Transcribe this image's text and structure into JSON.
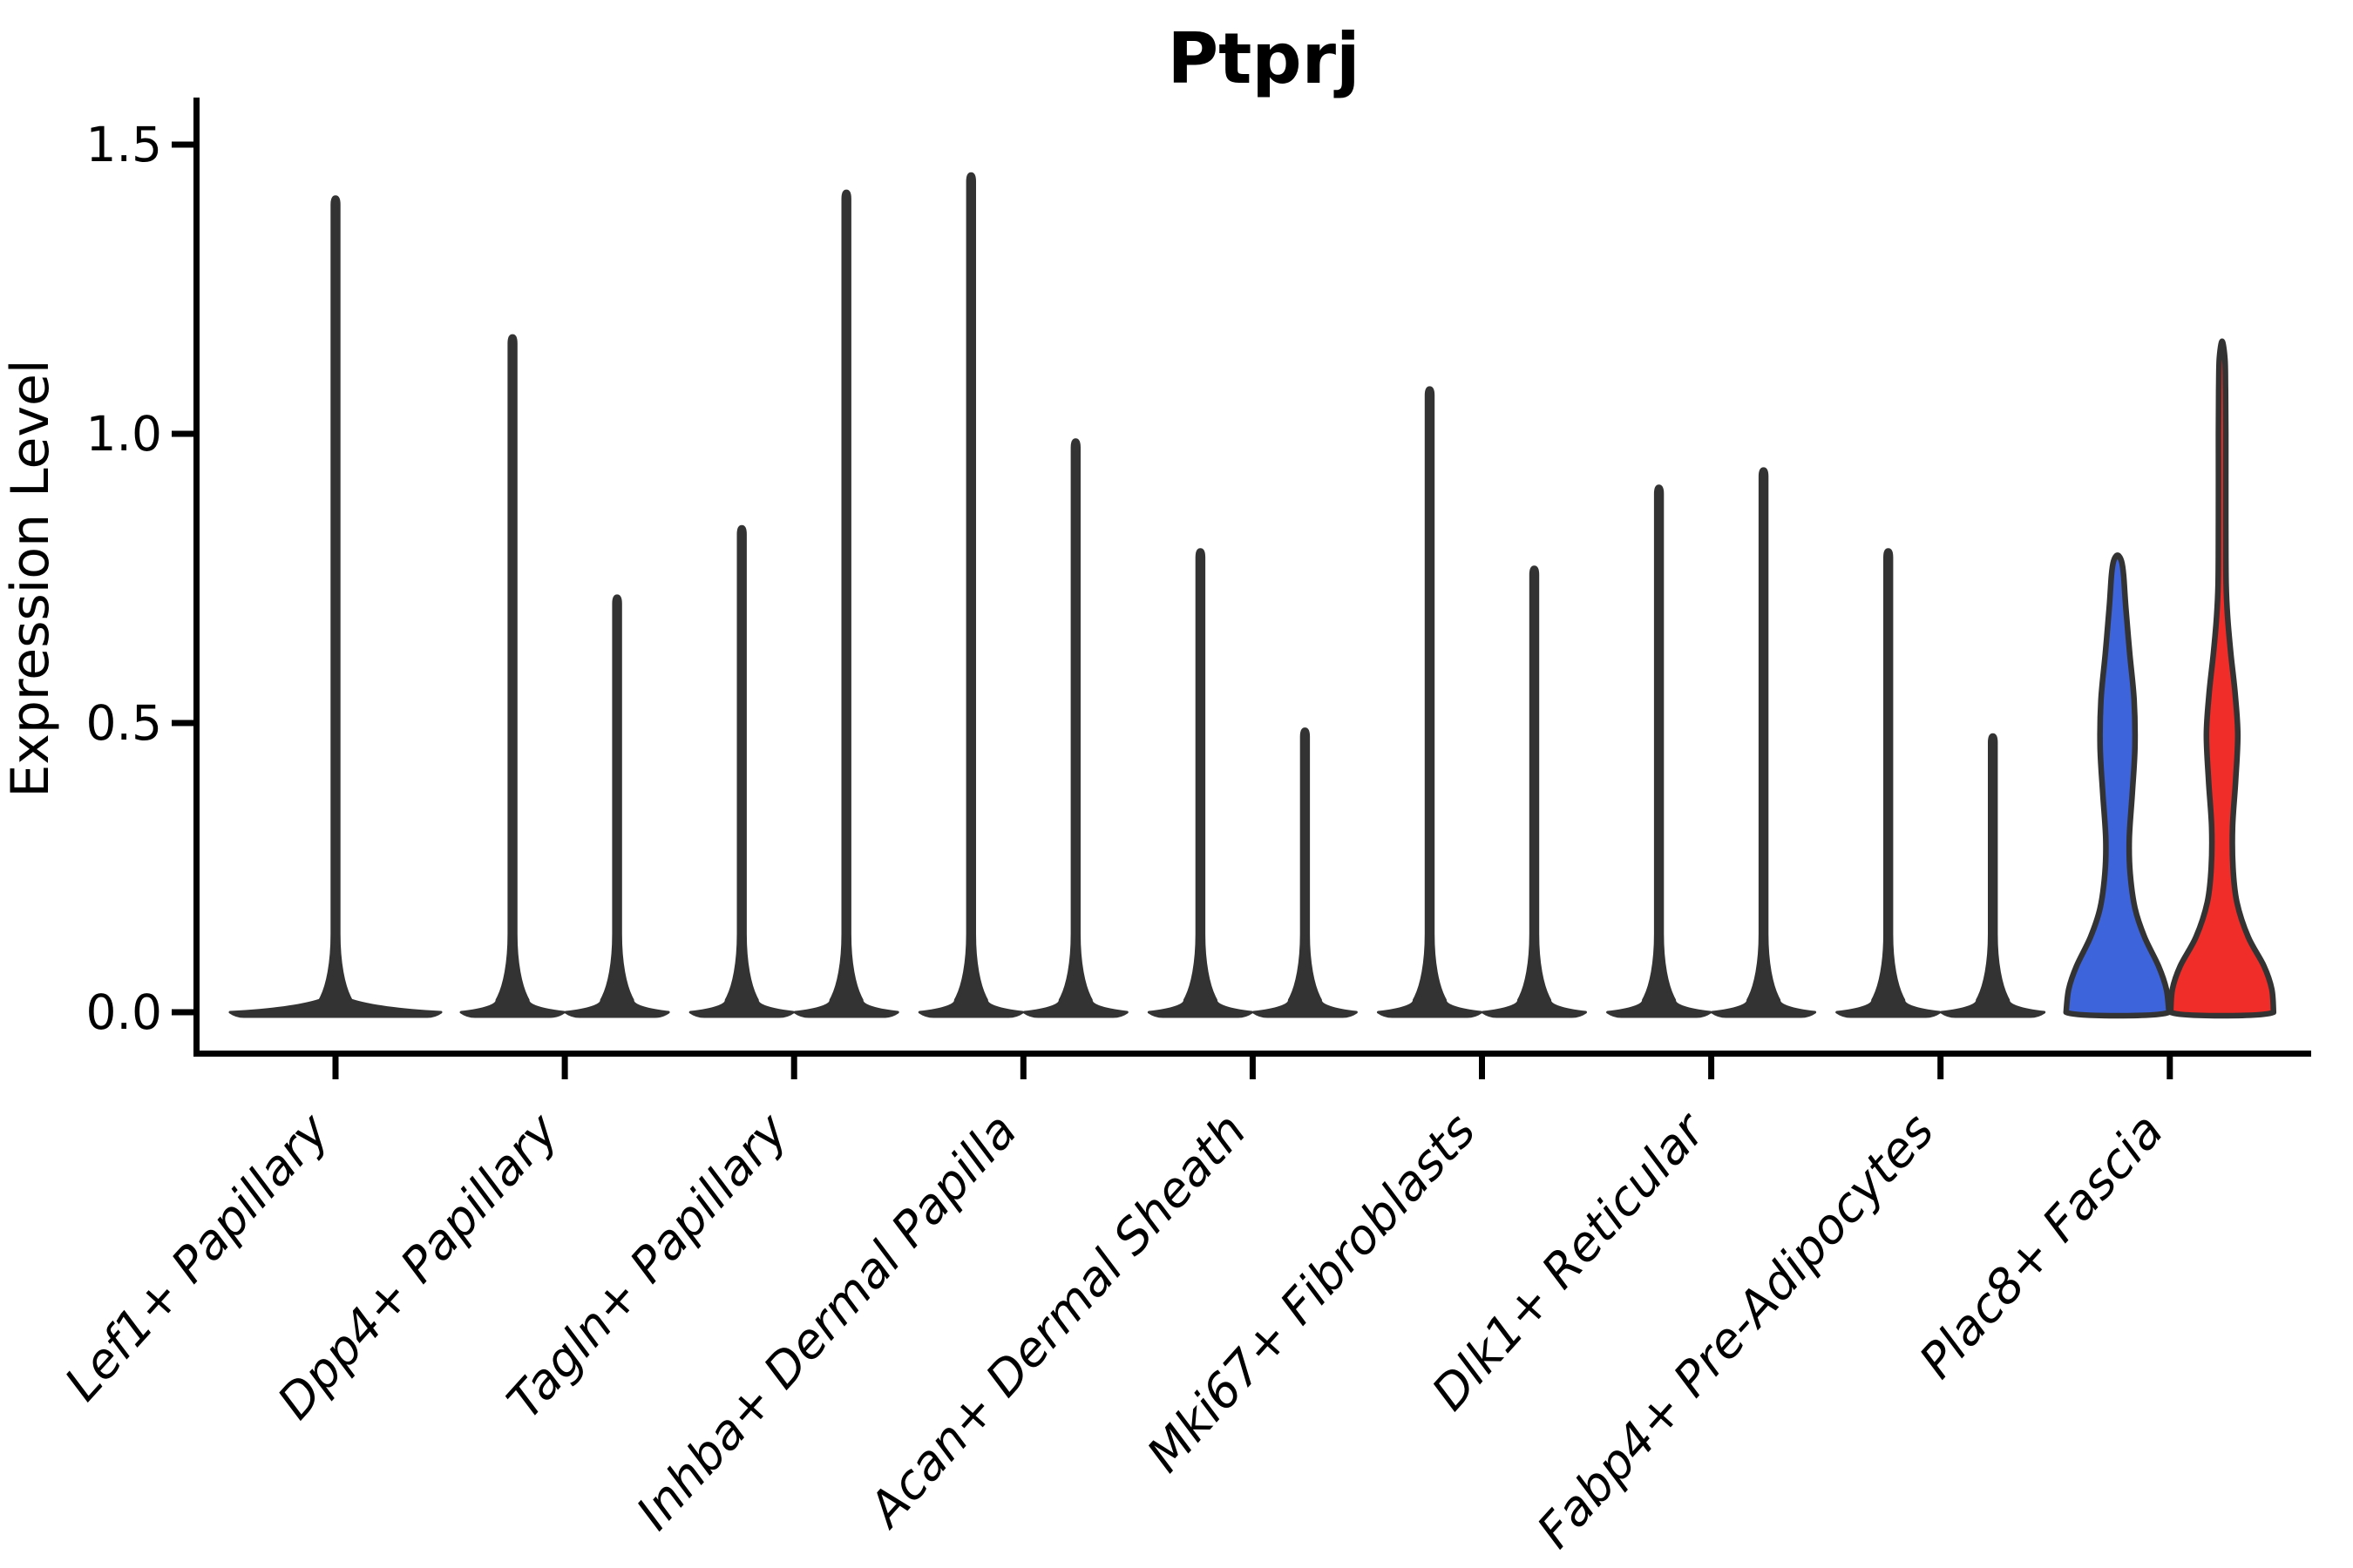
{
  "figure": {
    "title": "Ptprj",
    "background": "#ffffff",
    "axis_color": "#000000",
    "violin_outline_color": "#333333"
  },
  "chart_data": {
    "type": "violin",
    "title": "Ptprj",
    "xlabel": "",
    "ylabel": "Expression Level",
    "ylim": [
      -0.07,
      1.57
    ],
    "yticks": [
      0.0,
      0.5,
      1.0,
      1.5
    ],
    "ytick_labels": [
      "0.0",
      "0.5",
      "1.0",
      "1.5"
    ],
    "grid": false,
    "legend": "none",
    "description": "Split violin plot; every violin is zero-inflated (dense flat mass at 0 with a thin spike to its maximum). Only the last category is colored (blue left, red right); all other violins are dark gray.",
    "highlighted_category": "Plac8+ Fascia",
    "categories": [
      "Lef1+ Papillary",
      "Dpp4+ Papillary",
      "Tagln+ Papillary",
      "Inhba+ Dermal Papilla",
      "Acan+ Dermal Sheath",
      "Mki67+ Fibroblasts",
      "Dlk1+ Reticular",
      "Fabp4+ Pre-Adipocytes",
      "Plac8+ Fascia"
    ],
    "violins": [
      {
        "category": "Lef1+ Papillary",
        "violins": [
          {
            "side": "center",
            "max": 1.41,
            "style": "spike",
            "width": "double",
            "color": "#333333"
          }
        ]
      },
      {
        "category": "Dpp4+ Papillary",
        "violins": [
          {
            "side": "left",
            "max": 1.17,
            "style": "spike",
            "color": "#333333"
          },
          {
            "side": "right",
            "max": 0.72,
            "style": "spike",
            "color": "#333333"
          }
        ]
      },
      {
        "category": "Tagln+ Papillary",
        "violins": [
          {
            "side": "left",
            "max": 0.84,
            "style": "spike",
            "color": "#333333"
          },
          {
            "side": "right",
            "max": 1.42,
            "style": "spike",
            "color": "#333333"
          }
        ]
      },
      {
        "category": "Inhba+ Dermal Papilla",
        "violins": [
          {
            "side": "left",
            "max": 1.45,
            "style": "spike",
            "color": "#333333"
          },
          {
            "side": "right",
            "max": 0.99,
            "style": "spike",
            "color": "#333333"
          }
        ]
      },
      {
        "category": "Acan+ Dermal Sheath",
        "violins": [
          {
            "side": "left",
            "max": 0.8,
            "style": "spike",
            "color": "#333333"
          },
          {
            "side": "right",
            "max": 0.49,
            "style": "spike",
            "color": "#333333"
          }
        ]
      },
      {
        "category": "Mki67+ Fibroblasts",
        "violins": [
          {
            "side": "left",
            "max": 1.08,
            "style": "spike",
            "color": "#333333"
          },
          {
            "side": "right",
            "max": 0.77,
            "style": "spike",
            "color": "#333333"
          }
        ]
      },
      {
        "category": "Dlk1+ Reticular",
        "violins": [
          {
            "side": "left",
            "max": 0.91,
            "style": "spike",
            "color": "#333333"
          },
          {
            "side": "right",
            "max": 0.94,
            "style": "spike",
            "color": "#333333"
          }
        ]
      },
      {
        "category": "Fabp4+ Pre-Adipocytes",
        "violins": [
          {
            "side": "left",
            "max": 0.8,
            "style": "spike",
            "color": "#333333"
          },
          {
            "side": "right",
            "max": 0.48,
            "style": "spike",
            "color": "#333333"
          }
        ]
      },
      {
        "category": "Plac8+ Fascia",
        "violins": [
          {
            "side": "left",
            "max": 0.79,
            "style": "curved",
            "color": "#3E64DC",
            "profile": [
              [
                0,
                59
              ],
              [
                0.04,
                56
              ],
              [
                0.08,
                47
              ],
              [
                0.13,
                31
              ],
              [
                0.18,
                20
              ],
              [
                0.24,
                14.5
              ],
              [
                0.3,
                13.5
              ],
              [
                0.38,
                17
              ],
              [
                0.46,
                20
              ],
              [
                0.54,
                19
              ],
              [
                0.62,
                14
              ],
              [
                0.7,
                9.5
              ],
              [
                0.755,
                7
              ],
              [
                0.78,
                4.5
              ],
              [
                0.79,
                0
              ]
            ]
          },
          {
            "side": "right",
            "max": 1.16,
            "style": "curved",
            "color": "#F02D28",
            "profile": [
              [
                0,
                59
              ],
              [
                0.04,
                57
              ],
              [
                0.08,
                48
              ],
              [
                0.13,
                30
              ],
              [
                0.19,
                17
              ],
              [
                0.25,
                12.5
              ],
              [
                0.32,
                12
              ],
              [
                0.4,
                15.5
              ],
              [
                0.48,
                18
              ],
              [
                0.55,
                15
              ],
              [
                0.62,
                10
              ],
              [
                0.68,
                6.5
              ],
              [
                0.74,
                4.6
              ],
              [
                0.85,
                4.2
              ],
              [
                1.0,
                4.2
              ],
              [
                1.08,
                3.9
              ],
              [
                1.13,
                3.2
              ],
              [
                1.16,
                0
              ]
            ]
          }
        ]
      }
    ]
  }
}
